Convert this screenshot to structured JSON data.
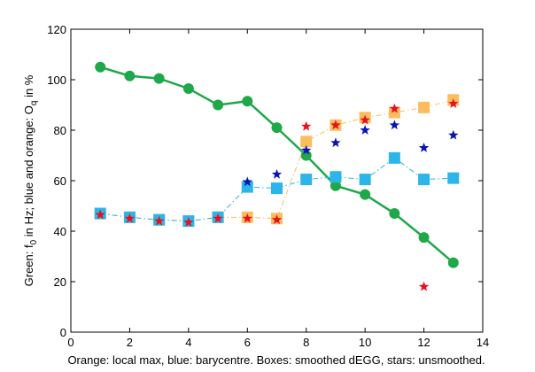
{
  "chart_data": {
    "type": "scatter",
    "xlabel": "Orange: local max, blue: barycentre. Boxes: smoothed dEGG, stars: unsmoothed.",
    "ylabel": "Green: f",
    "ylabel_sub": "0",
    "ylabel_mid": " in Hz; blue and orange: O",
    "ylabel_sub2": "q",
    "ylabel_end": " in %",
    "xlim": [
      0,
      14
    ],
    "ylim": [
      0,
      120
    ],
    "xticks": [
      "0",
      "2",
      "4",
      "6",
      "8",
      "10",
      "12",
      "14"
    ],
    "yticks": [
      "0",
      "20",
      "40",
      "60",
      "80",
      "100",
      "120"
    ],
    "grid": false,
    "series": [
      {
        "color": "#1fa84a",
        "marker": "circle",
        "line": "solid",
        "x": [
          1,
          2,
          3,
          4,
          5,
          6,
          7,
          8,
          9,
          10,
          11,
          12,
          13
        ],
        "y": [
          105,
          101.5,
          100.5,
          96.5,
          90,
          91.5,
          81,
          70,
          58,
          54.5,
          47,
          37.5,
          27.5
        ]
      },
      {
        "color": "#fbbd5f",
        "marker": "square",
        "line": "dashdot",
        "x": [
          1,
          2,
          3,
          4,
          5,
          6,
          7,
          8,
          9,
          10,
          11,
          12,
          13
        ],
        "y": [
          47,
          45.5,
          44.5,
          44,
          45.5,
          45.5,
          45,
          75.5,
          82,
          85,
          87,
          89,
          92
        ]
      },
      {
        "color": "#2bb5e8",
        "marker": "square",
        "line": "dashdot",
        "x": [
          1,
          2,
          3,
          4,
          5,
          6,
          7,
          8,
          9,
          10,
          11,
          12,
          13
        ],
        "y": [
          47,
          45.5,
          44.5,
          44,
          45.5,
          57.5,
          57,
          60.5,
          61.5,
          60.5,
          69,
          60.5,
          61
        ]
      },
      {
        "color": "#e8101c",
        "marker": "star",
        "line": "none",
        "x": [
          1,
          2,
          3,
          4,
          5,
          6,
          7,
          8,
          9,
          10,
          11,
          12,
          13
        ],
        "y": [
          46.5,
          45,
          44,
          43.5,
          45,
          45,
          44.5,
          81.5,
          82,
          84,
          88.5,
          18,
          90.5
        ]
      },
      {
        "color": "#0a14b4",
        "marker": "star",
        "line": "none",
        "x": [
          6,
          7,
          8,
          9,
          10,
          11,
          12,
          13
        ],
        "y": [
          59.5,
          62.5,
          72,
          75,
          80,
          82,
          73,
          78
        ]
      }
    ]
  }
}
